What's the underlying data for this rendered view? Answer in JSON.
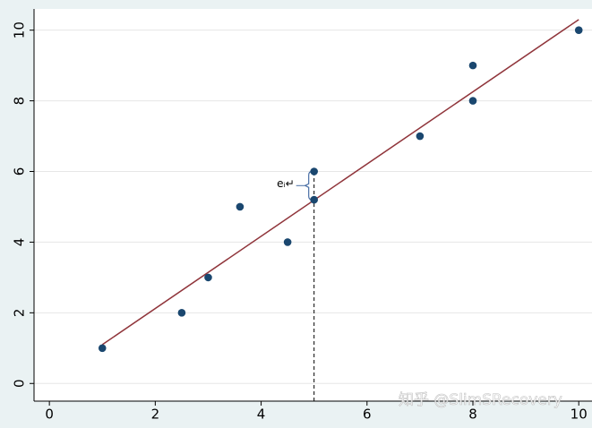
{
  "chart_data": {
    "type": "scatter",
    "points": {
      "x": [
        1,
        2.5,
        3,
        3.6,
        4.5,
        5,
        5,
        7,
        8,
        8,
        10
      ],
      "y": [
        1,
        2,
        3,
        5,
        4,
        6,
        5.2,
        7,
        9,
        8,
        10
      ],
      "color": "#1a476f"
    },
    "fit_line": {
      "x": [
        1,
        10
      ],
      "y": [
        1.1,
        10.3
      ],
      "color": "#90353b"
    },
    "residual": {
      "x": 5,
      "y_fit": 5.2,
      "y_obs": 6,
      "label": "eᵢ↵"
    },
    "xlim": [
      -0.29,
      10.25
    ],
    "ylim": [
      -0.5,
      10.6
    ],
    "xticks": [
      0,
      2,
      4,
      6,
      8,
      10
    ],
    "yticks": [
      0,
      2,
      4,
      6,
      8,
      10
    ],
    "grid": true,
    "watermark": "知乎 @SlimSRecovery"
  }
}
